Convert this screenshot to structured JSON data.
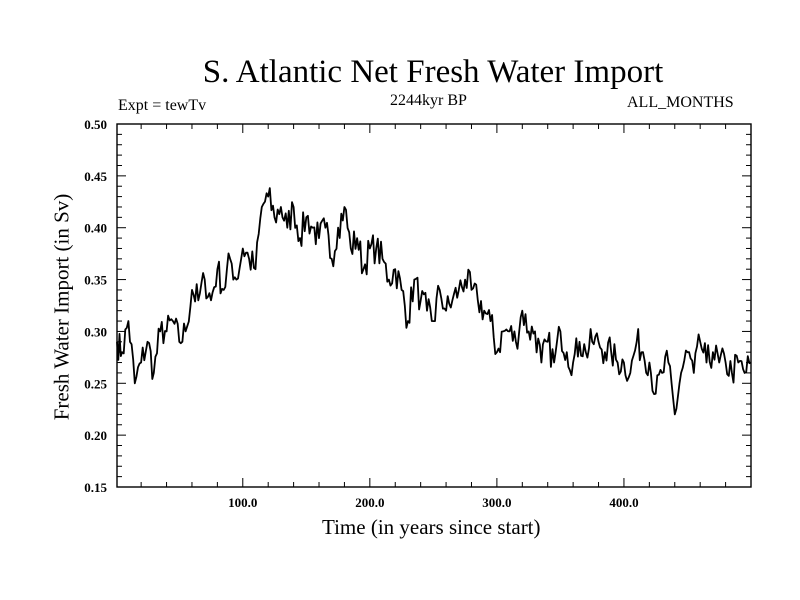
{
  "chart_data": {
    "type": "line",
    "title": "S. Atlantic Net Fresh Water Import",
    "annotations": {
      "experiment": "Expt = tewTv",
      "period": "2244kyr BP",
      "months": "ALL_MONTHS"
    },
    "xlabel": "Time (in years since start)",
    "ylabel": "Fresh Water Import (in Sv)",
    "xlim": [
      1,
      500
    ],
    "ylim": [
      0.15,
      0.5
    ],
    "xticks": [
      100,
      200,
      300,
      400
    ],
    "xtick_labels": [
      "100.0",
      "200.0",
      "300.0",
      "400.0"
    ],
    "yticks": [
      0.15,
      0.2,
      0.25,
      0.3,
      0.35,
      0.4,
      0.45,
      0.5
    ],
    "ytick_labels": [
      "0.15",
      "0.20",
      "0.25",
      "0.30",
      "0.35",
      "0.40",
      "0.45",
      "0.50"
    ],
    "series": [
      {
        "name": "fresh_water_import",
        "color": "#000000",
        "x": [
          1,
          5,
          10,
          15,
          20,
          25,
          30,
          35,
          40,
          45,
          50,
          55,
          60,
          65,
          70,
          75,
          80,
          85,
          90,
          95,
          100,
          105,
          110,
          115,
          120,
          125,
          130,
          135,
          140,
          145,
          150,
          155,
          160,
          165,
          170,
          175,
          180,
          185,
          190,
          195,
          200,
          205,
          210,
          215,
          220,
          225,
          230,
          235,
          240,
          245,
          250,
          255,
          260,
          265,
          270,
          275,
          280,
          285,
          290,
          295,
          300,
          305,
          310,
          315,
          320,
          325,
          330,
          335,
          340,
          345,
          350,
          355,
          360,
          365,
          370,
          375,
          380,
          385,
          390,
          395,
          400,
          405,
          410,
          415,
          420,
          425,
          430,
          435,
          440,
          445,
          450,
          455,
          460,
          465,
          470,
          475,
          480,
          485,
          490,
          495,
          500
        ],
        "values": [
          0.29,
          0.28,
          0.31,
          0.25,
          0.27,
          0.29,
          0.26,
          0.3,
          0.3,
          0.31,
          0.29,
          0.3,
          0.34,
          0.33,
          0.35,
          0.33,
          0.36,
          0.34,
          0.37,
          0.35,
          0.38,
          0.37,
          0.36,
          0.42,
          0.43,
          0.41,
          0.42,
          0.4,
          0.42,
          0.39,
          0.41,
          0.4,
          0.39,
          0.4,
          0.37,
          0.4,
          0.42,
          0.38,
          0.39,
          0.36,
          0.38,
          0.38,
          0.37,
          0.35,
          0.36,
          0.34,
          0.31,
          0.35,
          0.33,
          0.32,
          0.31,
          0.34,
          0.32,
          0.33,
          0.34,
          0.35,
          0.34,
          0.33,
          0.32,
          0.31,
          0.28,
          0.3,
          0.3,
          0.29,
          0.32,
          0.3,
          0.3,
          0.27,
          0.29,
          0.27,
          0.3,
          0.28,
          0.27,
          0.29,
          0.28,
          0.29,
          0.29,
          0.28,
          0.28,
          0.27,
          0.27,
          0.26,
          0.29,
          0.28,
          0.27,
          0.24,
          0.26,
          0.27,
          0.22,
          0.26,
          0.28,
          0.26,
          0.29,
          0.27,
          0.28,
          0.27,
          0.27,
          0.26,
          0.27,
          0.26,
          0.27
        ]
      }
    ]
  }
}
